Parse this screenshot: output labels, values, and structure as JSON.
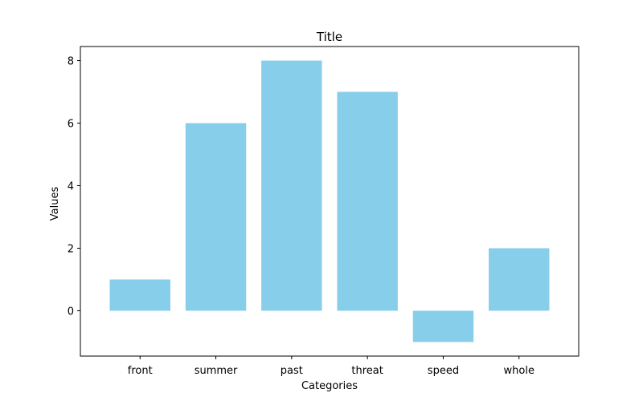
{
  "chart_data": {
    "type": "bar",
    "title": "Title",
    "xlabel": "Categories",
    "ylabel": "Values",
    "categories": [
      "front",
      "summer",
      "past",
      "threat",
      "speed",
      "whole"
    ],
    "values": [
      1,
      6,
      8,
      7,
      -1,
      2
    ],
    "ylim": [
      -1.45,
      8.45
    ],
    "yticks": [
      0,
      2,
      4,
      6,
      8
    ],
    "grid": false,
    "bar_color": "#87ceeb"
  }
}
